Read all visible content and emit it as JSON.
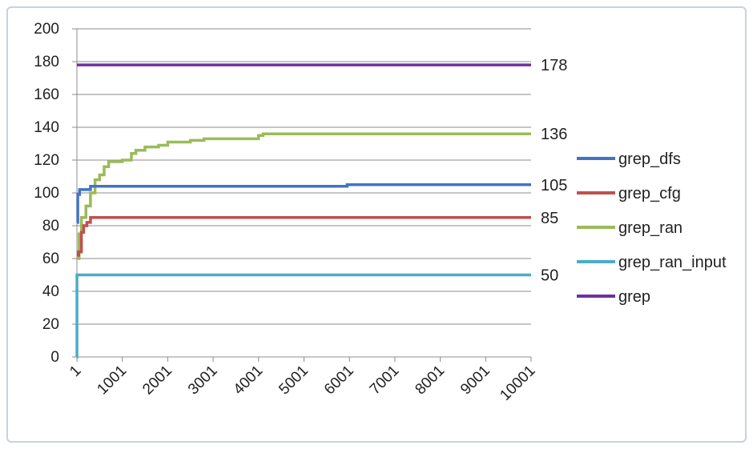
{
  "chart_data": {
    "type": "line",
    "title": "",
    "xlabel": "",
    "ylabel": "",
    "ylim": [
      0,
      200
    ],
    "xlim": [
      1,
      10001
    ],
    "y_ticks": [
      0,
      20,
      40,
      60,
      80,
      100,
      120,
      140,
      160,
      180,
      200
    ],
    "x_tick_labels": [
      "1",
      "1001",
      "2001",
      "3001",
      "4001",
      "5001",
      "6001",
      "7001",
      "8001",
      "9001",
      "10001"
    ],
    "grid": "horizontal",
    "legend_position": "right",
    "end_labels": [
      "178",
      "136",
      "105",
      "85",
      "50"
    ],
    "series": [
      {
        "name": "grep_dfs",
        "color": "#4472c4",
        "x": [
          1,
          20,
          60,
          120,
          300,
          5900,
          5950,
          10001
        ],
        "y": [
          82,
          99,
          102,
          102,
          104,
          104,
          105,
          105
        ]
      },
      {
        "name": "grep_cfg",
        "color": "#c0504d",
        "x": [
          1,
          40,
          100,
          150,
          220,
          300,
          10001
        ],
        "y": [
          62,
          64,
          76,
          80,
          82,
          85,
          85
        ]
      },
      {
        "name": "grep_ran",
        "color": "#9bbb59",
        "x": [
          1,
          50,
          100,
          200,
          300,
          400,
          500,
          600,
          700,
          1001,
          1200,
          1300,
          1500,
          1800,
          2001,
          2500,
          2800,
          3300,
          4000,
          4100,
          10001
        ],
        "y": [
          60,
          75,
          85,
          92,
          100,
          108,
          111,
          116,
          119,
          120,
          124,
          126,
          128,
          129,
          131,
          132,
          133,
          133,
          135,
          136,
          136
        ]
      },
      {
        "name": "grep_ran_input",
        "color": "#4bacc6",
        "x": [
          1,
          2,
          10001
        ],
        "y": [
          0,
          50,
          50
        ]
      },
      {
        "name": "grep",
        "color": "#7030a0",
        "x": [
          1,
          10001
        ],
        "y": [
          178,
          178
        ]
      }
    ]
  }
}
